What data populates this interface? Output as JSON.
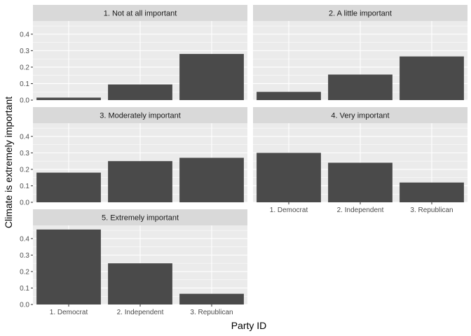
{
  "chart_data": {
    "type": "bar",
    "layout": "faceted (facet_wrap)",
    "xlabel": "Party ID",
    "ylabel": "Climate is extremely important",
    "categories": [
      "1. Democrat",
      "2. Independent",
      "3. Republican"
    ],
    "ylim": [
      0,
      0.48
    ],
    "yticks": [
      "0.0",
      "0.1",
      "0.2",
      "0.3",
      "0.4"
    ],
    "grid": true,
    "colors": {
      "bar": "#4a4a4a",
      "panel_bg": "#ebebeb",
      "strip_bg": "#d9d9d9",
      "grid": "#ffffff"
    },
    "facets": [
      {
        "title": "1. Not at all important",
        "values": [
          0.015,
          0.095,
          0.28
        ]
      },
      {
        "title": "2. A little important",
        "values": [
          0.05,
          0.155,
          0.265
        ]
      },
      {
        "title": "3. Moderately important",
        "values": [
          0.18,
          0.25,
          0.27
        ]
      },
      {
        "title": "4. Very important",
        "values": [
          0.3,
          0.24,
          0.12
        ]
      },
      {
        "title": "5. Extremely important",
        "values": [
          0.455,
          0.25,
          0.065
        ]
      }
    ]
  }
}
